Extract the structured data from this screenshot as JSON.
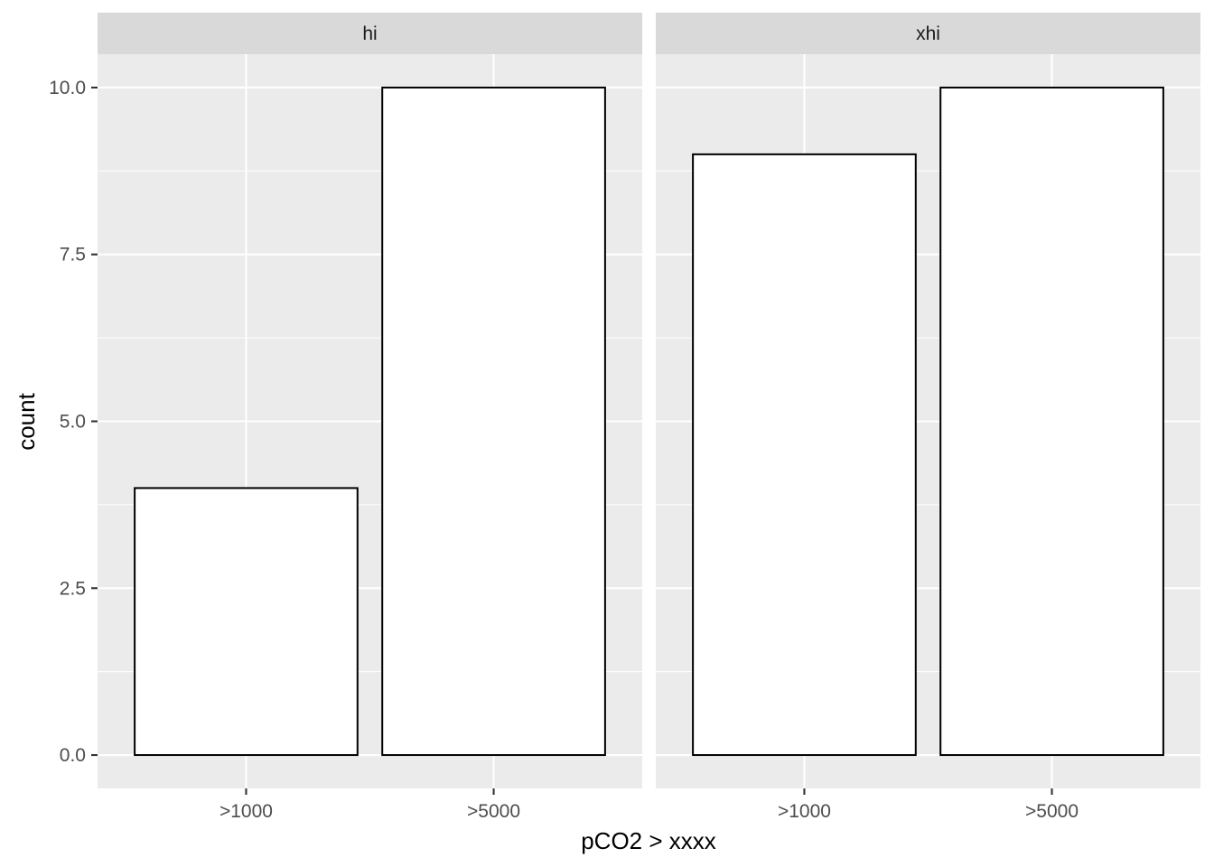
{
  "chart_data": {
    "type": "bar",
    "facet_by": "panel",
    "xlabel": "pCO2 > xxxx",
    "ylabel": "count",
    "ylim": [
      0,
      10.5
    ],
    "yticks": [
      0,
      2.5,
      5,
      7.5,
      10
    ],
    "ytick_labels": [
      "0.0",
      "2.5",
      "5.0",
      "7.5",
      "10.0"
    ],
    "categories": [
      ">1000",
      ">5000"
    ],
    "panels": [
      {
        "name": "hi",
        "values": [
          4,
          10
        ]
      },
      {
        "name": "xhi",
        "values": [
          9,
          10
        ]
      }
    ],
    "grid": true,
    "colors": {
      "panel_bg": "#ebebeb",
      "strip_bg": "#d9d9d9",
      "bar_fill": "#ffffff",
      "bar_stroke": "#000000"
    }
  }
}
